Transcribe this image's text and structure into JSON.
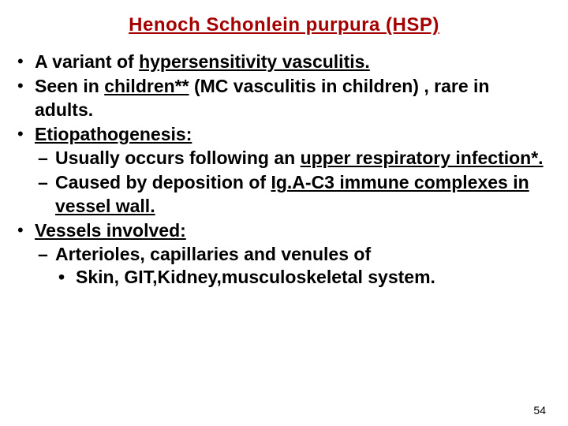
{
  "title": "Henoch Schonlein purpura (HSP)",
  "bullets": [
    {
      "segments": [
        {
          "t": "A variant of ",
          "u": false
        },
        {
          "t": "hypersensitivity vasculitis.",
          "u": true
        }
      ]
    },
    {
      "segments": [
        {
          "t": "Seen in ",
          "u": false
        },
        {
          "t": "children**",
          "u": true
        },
        {
          "t": " (MC vasculitis in children) , rare in adults.",
          "u": false
        }
      ]
    },
    {
      "segments": [
        {
          "t": "Etiopathogenesis:",
          "u": true
        }
      ],
      "children": [
        {
          "segments": [
            {
              "t": "Usually occurs following an ",
              "u": false
            },
            {
              "t": "upper respiratory infection*.",
              "u": true
            }
          ]
        },
        {
          "segments": [
            {
              "t": "Caused by deposition of ",
              "u": false
            },
            {
              "t": "Ig.A-C3 immune complexes in vessel wall.",
              "u": true
            }
          ]
        }
      ]
    },
    {
      "segments": [
        {
          "t": "Vessels involved:",
          "u": true
        }
      ],
      "children": [
        {
          "segments": [
            {
              "t": "Arterioles, capillaries and venules of",
              "u": false
            }
          ],
          "children": [
            {
              "segments": [
                {
                  "t": "Skin, GIT,Kidney,musculoskeletal system.",
                  "u": false
                }
              ]
            }
          ]
        }
      ]
    }
  ],
  "pageNumber": "54",
  "colors": {
    "titleColor": "#a50000",
    "textColor": "#000000",
    "background": "#ffffff"
  },
  "typography": {
    "fontFamily": "Comic Sans MS",
    "titleSize": 24,
    "bodySize": 23
  }
}
